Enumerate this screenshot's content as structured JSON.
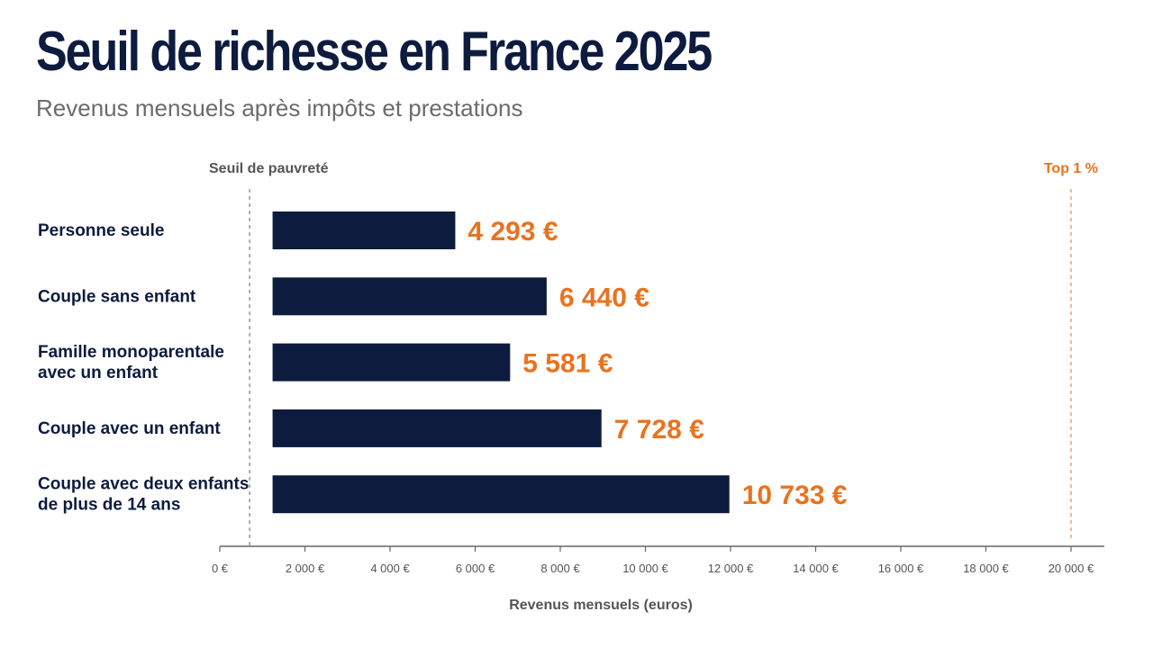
{
  "title": "Seuil de richesse en France 2025",
  "subtitle": "Revenus mensuels après impôts et prestations",
  "colors": {
    "bar": "#0d1b3e",
    "value_label": "#e8731f",
    "axis": "#666666",
    "top_ref": "#e8731f"
  },
  "chart_data": {
    "type": "bar",
    "orientation": "horizontal",
    "title": "Seuil de richesse en France 2025",
    "subtitle": "Revenus mensuels après impôts et prestations",
    "categories": [
      [
        "Personne seule"
      ],
      [
        "Couple sans enfant"
      ],
      [
        "Famille monoparentale",
        "avec un enfant"
      ],
      [
        "Couple avec un enfant"
      ],
      [
        "Couple avec deux enfants",
        "de plus de 14 ans"
      ]
    ],
    "values": [
      4293,
      6440,
      5581,
      7728,
      10733
    ],
    "value_labels": [
      "4 293 €",
      "6 440 €",
      "5 581 €",
      "7 728 €",
      "10 733 €"
    ],
    "xlabel": "Revenus mensuels (euros)",
    "ylabel": "",
    "xlim": [
      0,
      20000
    ],
    "ticks": [
      0,
      2000,
      4000,
      6000,
      8000,
      10000,
      12000,
      14000,
      16000,
      18000,
      20000
    ],
    "tick_labels": [
      "0 €",
      "2 000 €",
      "4 000 €",
      "6 000 €",
      "8 000 €",
      "10 000 €",
      "12 000 €",
      "14 000 €",
      "16 000 €",
      "18 000 €",
      "20 000 €"
    ],
    "bar_start": 1240,
    "reference_lines": [
      {
        "label": "Seuil de pauvreté",
        "x": 700,
        "style": "dashed"
      },
      {
        "label": "Top 1 %",
        "x": 20000,
        "style": "dashed"
      }
    ],
    "grid": false,
    "legend": "none"
  }
}
